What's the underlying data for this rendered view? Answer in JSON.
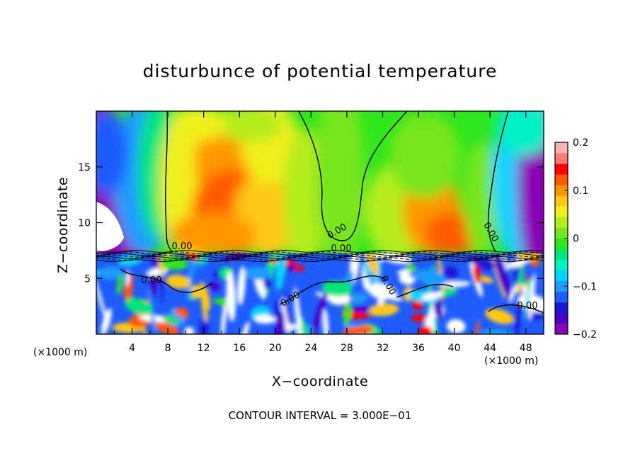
{
  "chart_data": {
    "type": "heatmap",
    "title": "disturbunce of potential temperature",
    "xlabel": "X−coordinate",
    "ylabel": "Z−coordinate",
    "x_unit": "(×1000 m)",
    "x_unit_right": "(×1000 m)",
    "xlim": [
      0,
      50
    ],
    "ylim": [
      0,
      20
    ],
    "x_ticks": [
      4,
      8,
      12,
      16,
      20,
      24,
      28,
      32,
      36,
      40,
      44,
      48
    ],
    "y_ticks": [
      5,
      10,
      15
    ],
    "colorbar": {
      "min": -0.2,
      "max": 0.2,
      "tick_labels": [
        "0.2",
        "0.1",
        "0",
        "−0.1",
        "−0.2"
      ],
      "tick_values": [
        0.2,
        0.1,
        0,
        -0.1,
        -0.2
      ]
    },
    "contour_labels": [
      "0.00",
      "0.00",
      "0.00",
      "0.00",
      "0.00",
      "0.00",
      "0.00",
      "0.00"
    ],
    "contour_interval": "CONTOUR INTERVAL = 3.000E−01"
  },
  "colors": {
    "scale": [
      "#8a00b8",
      "#4a00c8",
      "#1a1ad8",
      "#1e5cff",
      "#1e9cff",
      "#00d4ff",
      "#00f0c8",
      "#00e678",
      "#2ee61e",
      "#78e61e",
      "#b4ec1e",
      "#f0f01e",
      "#ffc814",
      "#ff9600",
      "#ff5a00",
      "#ff0000",
      "#ff7878",
      "#ffb4b4"
    ]
  }
}
